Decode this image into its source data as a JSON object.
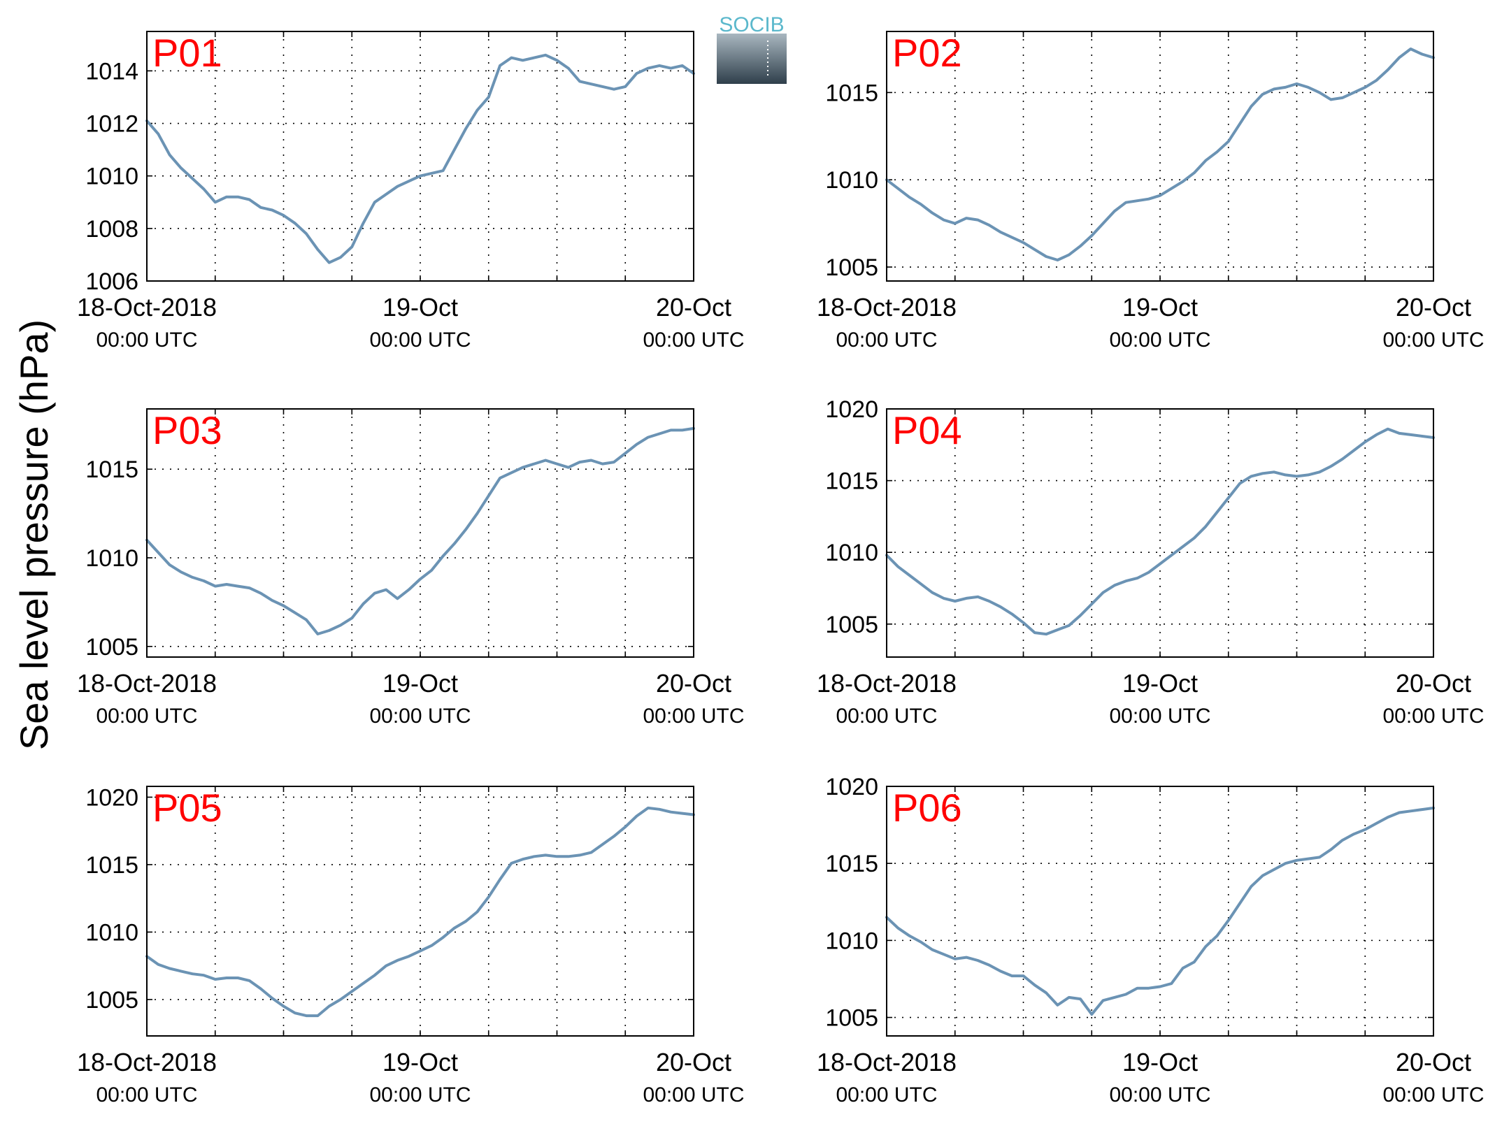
{
  "figure": {
    "ylabel": "Sea level pressure (hPa)",
    "logo": {
      "text": "SOCIB",
      "text_color": "#5bb8cc",
      "gradient_top": "#a9b7c0",
      "gradient_bottom": "#2f3f4b"
    }
  },
  "style": {
    "line_color": "#6b93b4",
    "panel_label_color": "#ff0000",
    "axis_color": "#000000",
    "grid": "dotted"
  },
  "x_ticks": [
    {
      "value": 0,
      "line1": "18-Oct-2018",
      "line2": "00:00 UTC"
    },
    {
      "value": 24,
      "line1": "19-Oct",
      "line2": "00:00 UTC"
    },
    {
      "value": 48,
      "line1": "20-Oct",
      "line2": "00:00 UTC"
    }
  ],
  "chart_data": [
    {
      "type": "line",
      "title": "P01",
      "xlim": [
        0,
        48
      ],
      "x_unit": "hours since 18-Oct-2018 00:00 UTC",
      "ylim": [
        1006,
        1015.5
      ],
      "yticks": [
        1006,
        1008,
        1010,
        1012,
        1014
      ],
      "grid": true,
      "x": [
        0,
        1,
        2,
        3,
        4,
        5,
        6,
        7,
        8,
        9,
        10,
        11,
        12,
        13,
        14,
        15,
        16,
        17,
        18,
        19,
        20,
        21,
        22,
        23,
        24,
        25,
        26,
        27,
        28,
        29,
        30,
        31,
        32,
        33,
        34,
        35,
        36,
        37,
        38,
        39,
        40,
        41,
        42,
        43,
        44,
        45,
        46,
        47,
        48
      ],
      "y": [
        1012.1,
        1011.6,
        1010.8,
        1010.3,
        1009.9,
        1009.5,
        1009.0,
        1009.2,
        1009.2,
        1009.1,
        1008.8,
        1008.7,
        1008.5,
        1008.2,
        1007.8,
        1007.2,
        1006.7,
        1006.9,
        1007.3,
        1008.2,
        1009.0,
        1009.3,
        1009.6,
        1009.8,
        1010.0,
        1010.1,
        1010.2,
        1011.0,
        1011.8,
        1012.5,
        1013.0,
        1014.2,
        1014.5,
        1014.4,
        1014.5,
        1014.6,
        1014.4,
        1014.1,
        1013.6,
        1013.5,
        1013.4,
        1013.3,
        1013.4,
        1013.9,
        1014.1,
        1014.2,
        1014.1,
        1014.2,
        1013.9
      ]
    },
    {
      "type": "line",
      "title": "P02",
      "xlim": [
        0,
        48
      ],
      "x_unit": "hours since 18-Oct-2018 00:00 UTC",
      "ylim": [
        1004.2,
        1018.5
      ],
      "yticks": [
        1005,
        1010,
        1015
      ],
      "grid": true,
      "x": [
        0,
        1,
        2,
        3,
        4,
        5,
        6,
        7,
        8,
        9,
        10,
        11,
        12,
        13,
        14,
        15,
        16,
        17,
        18,
        19,
        20,
        21,
        22,
        23,
        24,
        25,
        26,
        27,
        28,
        29,
        30,
        31,
        32,
        33,
        34,
        35,
        36,
        37,
        38,
        39,
        40,
        41,
        42,
        43,
        44,
        45,
        46,
        47,
        48
      ],
      "y": [
        1010.0,
        1009.5,
        1009.0,
        1008.6,
        1008.1,
        1007.7,
        1007.5,
        1007.8,
        1007.7,
        1007.4,
        1007.0,
        1006.7,
        1006.4,
        1006.0,
        1005.6,
        1005.4,
        1005.7,
        1006.2,
        1006.8,
        1007.5,
        1008.2,
        1008.7,
        1008.8,
        1008.9,
        1009.1,
        1009.5,
        1009.9,
        1010.4,
        1011.1,
        1011.6,
        1012.2,
        1013.2,
        1014.2,
        1014.9,
        1015.2,
        1015.3,
        1015.5,
        1015.3,
        1015.0,
        1014.6,
        1014.7,
        1015.0,
        1015.3,
        1015.7,
        1016.3,
        1017.0,
        1017.5,
        1017.2,
        1017.0
      ]
    },
    {
      "type": "line",
      "title": "P03",
      "xlim": [
        0,
        48
      ],
      "x_unit": "hours since 18-Oct-2018 00:00 UTC",
      "ylim": [
        1004.4,
        1018.4
      ],
      "yticks": [
        1005,
        1010,
        1015
      ],
      "grid": true,
      "x": [
        0,
        1,
        2,
        3,
        4,
        5,
        6,
        7,
        8,
        9,
        10,
        11,
        12,
        13,
        14,
        15,
        16,
        17,
        18,
        19,
        20,
        21,
        22,
        23,
        24,
        25,
        26,
        27,
        28,
        29,
        30,
        31,
        32,
        33,
        34,
        35,
        36,
        37,
        38,
        39,
        40,
        41,
        42,
        43,
        44,
        45,
        46,
        47,
        48
      ],
      "y": [
        1011.0,
        1010.3,
        1009.6,
        1009.2,
        1008.9,
        1008.7,
        1008.4,
        1008.5,
        1008.4,
        1008.3,
        1008.0,
        1007.6,
        1007.3,
        1006.9,
        1006.5,
        1005.7,
        1005.9,
        1006.2,
        1006.6,
        1007.4,
        1008.0,
        1008.2,
        1007.7,
        1008.2,
        1008.8,
        1009.3,
        1010.1,
        1010.8,
        1011.6,
        1012.5,
        1013.5,
        1014.5,
        1014.8,
        1015.1,
        1015.3,
        1015.5,
        1015.3,
        1015.1,
        1015.4,
        1015.5,
        1015.3,
        1015.4,
        1015.9,
        1016.4,
        1016.8,
        1017.0,
        1017.2,
        1017.2,
        1017.3
      ]
    },
    {
      "type": "line",
      "title": "P04",
      "xlim": [
        0,
        48
      ],
      "x_unit": "hours since 18-Oct-2018 00:00 UTC",
      "ylim": [
        1002.7,
        1020
      ],
      "yticks": [
        1005,
        1010,
        1015,
        1020
      ],
      "grid": true,
      "x": [
        0,
        1,
        2,
        3,
        4,
        5,
        6,
        7,
        8,
        9,
        10,
        11,
        12,
        13,
        14,
        15,
        16,
        17,
        18,
        19,
        20,
        21,
        22,
        23,
        24,
        25,
        26,
        27,
        28,
        29,
        30,
        31,
        32,
        33,
        34,
        35,
        36,
        37,
        38,
        39,
        40,
        41,
        42,
        43,
        44,
        45,
        46,
        47,
        48
      ],
      "y": [
        1009.8,
        1009.0,
        1008.4,
        1007.8,
        1007.2,
        1006.8,
        1006.6,
        1006.8,
        1006.9,
        1006.6,
        1006.2,
        1005.7,
        1005.1,
        1004.4,
        1004.3,
        1004.6,
        1004.9,
        1005.6,
        1006.4,
        1007.2,
        1007.7,
        1008.0,
        1008.2,
        1008.6,
        1009.2,
        1009.8,
        1010.4,
        1011.0,
        1011.8,
        1012.8,
        1013.8,
        1014.8,
        1015.3,
        1015.5,
        1015.6,
        1015.4,
        1015.3,
        1015.4,
        1015.6,
        1016.0,
        1016.5,
        1017.1,
        1017.7,
        1018.2,
        1018.6,
        1018.3,
        1018.2,
        1018.1,
        1018.0
      ]
    },
    {
      "type": "line",
      "title": "P05",
      "xlim": [
        0,
        48
      ],
      "x_unit": "hours since 18-Oct-2018 00:00 UTC",
      "ylim": [
        1002.3,
        1020.8
      ],
      "yticks": [
        1005,
        1010,
        1015,
        1020
      ],
      "grid": true,
      "x": [
        0,
        1,
        2,
        3,
        4,
        5,
        6,
        7,
        8,
        9,
        10,
        11,
        12,
        13,
        14,
        15,
        16,
        17,
        18,
        19,
        20,
        21,
        22,
        23,
        24,
        25,
        26,
        27,
        28,
        29,
        30,
        31,
        32,
        33,
        34,
        35,
        36,
        37,
        38,
        39,
        40,
        41,
        42,
        43,
        44,
        45,
        46,
        47,
        48
      ],
      "y": [
        1008.2,
        1007.6,
        1007.3,
        1007.1,
        1006.9,
        1006.8,
        1006.5,
        1006.6,
        1006.6,
        1006.4,
        1005.8,
        1005.1,
        1004.5,
        1004.0,
        1003.8,
        1003.8,
        1004.5,
        1005.0,
        1005.6,
        1006.2,
        1006.8,
        1007.5,
        1007.9,
        1008.2,
        1008.6,
        1009.0,
        1009.6,
        1010.3,
        1010.8,
        1011.5,
        1012.6,
        1013.9,
        1015.1,
        1015.4,
        1015.6,
        1015.7,
        1015.6,
        1015.6,
        1015.7,
        1015.9,
        1016.5,
        1017.1,
        1017.8,
        1018.6,
        1019.2,
        1019.1,
        1018.9,
        1018.8,
        1018.7
      ]
    },
    {
      "type": "line",
      "title": "P06",
      "xlim": [
        0,
        48
      ],
      "x_unit": "hours since 18-Oct-2018 00:00 UTC",
      "ylim": [
        1003.8,
        1020
      ],
      "yticks": [
        1005,
        1010,
        1015,
        1020
      ],
      "grid": true,
      "x": [
        0,
        1,
        2,
        3,
        4,
        5,
        6,
        7,
        8,
        9,
        10,
        11,
        12,
        13,
        14,
        15,
        16,
        17,
        18,
        19,
        20,
        21,
        22,
        23,
        24,
        25,
        26,
        27,
        28,
        29,
        30,
        31,
        32,
        33,
        34,
        35,
        36,
        37,
        38,
        39,
        40,
        41,
        42,
        43,
        44,
        45,
        46,
        47,
        48
      ],
      "y": [
        1011.5,
        1010.8,
        1010.3,
        1009.9,
        1009.4,
        1009.1,
        1008.8,
        1008.9,
        1008.7,
        1008.4,
        1008.0,
        1007.7,
        1007.7,
        1007.1,
        1006.6,
        1005.8,
        1006.3,
        1006.2,
        1005.2,
        1006.1,
        1006.3,
        1006.5,
        1006.9,
        1006.9,
        1007.0,
        1007.2,
        1008.2,
        1008.6,
        1009.6,
        1010.3,
        1011.3,
        1012.4,
        1013.5,
        1014.2,
        1014.6,
        1015.0,
        1015.2,
        1015.3,
        1015.4,
        1015.9,
        1016.5,
        1016.9,
        1017.2,
        1017.6,
        1018.0,
        1018.3,
        1018.4,
        1018.5,
        1018.6
      ]
    }
  ]
}
